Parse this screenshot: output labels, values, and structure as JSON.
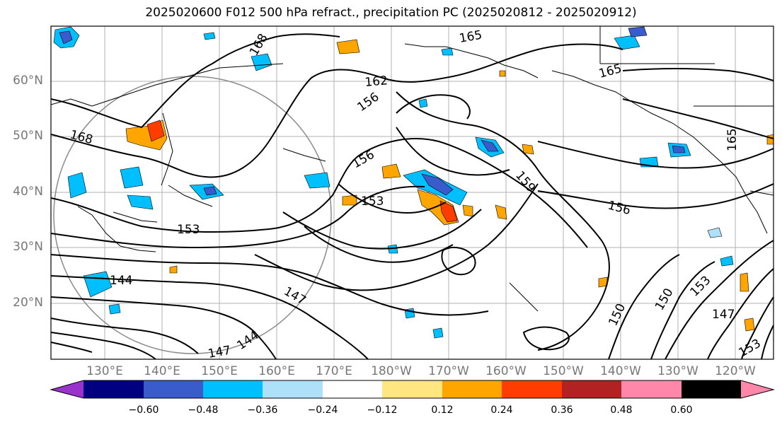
{
  "title": "2025020600 F012 500 hPa refract., precipitation PC (2025020812 - 2025020912)",
  "latitude_labels": [
    "60°N",
    "50°N",
    "40°N",
    "30°N",
    "20°N"
  ],
  "longitude_labels": [
    "130°E",
    "140°E",
    "150°E",
    "160°E",
    "170°E",
    "180°W",
    "170°W",
    "160°W",
    "150°W",
    "140°W",
    "130°W",
    "120°W"
  ],
  "colorbar": {
    "tick_labels": [
      "−0.60",
      "−0.48",
      "−0.36",
      "−0.24",
      "−0.12",
      "0.12",
      "0.24",
      "0.36",
      "0.48",
      "0.60"
    ],
    "colors": [
      "#9933cc",
      "#000080",
      "#3a5bcc",
      "#00bfff",
      "#aee0fa",
      "#ffffff",
      "#ffe680",
      "#ffa500",
      "#ff3d00",
      "#b22222",
      "#ff88aa"
    ]
  },
  "contour_labels": [
    "168",
    "165",
    "162",
    "165",
    "156",
    "168",
    "156",
    "159",
    "153",
    "153",
    "144",
    "147",
    "150",
    "153",
    "147",
    "144",
    "147",
    "150",
    "153",
    "156",
    "165"
  ],
  "colors": {
    "shade_blue": "#00bfff",
    "shade_light_blue": "#aee0fa",
    "shade_dark_blue": "#3a5bcc",
    "shade_orange": "#ffa500",
    "shade_red": "#ff3d00",
    "shade_yellow": "#ffe680"
  }
}
